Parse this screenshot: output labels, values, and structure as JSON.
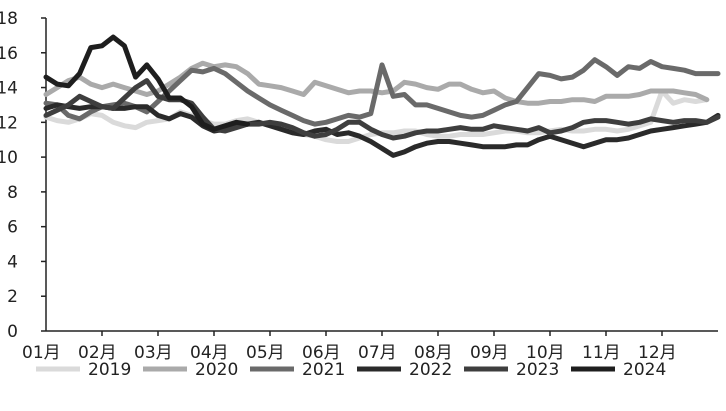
{
  "chart_data": {
    "type": "line",
    "title": "",
    "xlabel": "",
    "ylabel": "",
    "ylim": [
      0,
      18
    ],
    "yticks": [
      "0",
      "2",
      "4",
      "6",
      "8",
      "10",
      "12",
      "14",
      "16",
      "18"
    ],
    "categories": [
      "01月",
      "02月",
      "03月",
      "04月",
      "05月",
      "06月",
      "07月",
      "08月",
      "09月",
      "10月",
      "11月",
      "12月"
    ],
    "x_domain": [
      0,
      12
    ],
    "grid": false,
    "legend_position": "bottom",
    "series": [
      {
        "name": "2019",
        "color": "#dadada",
        "x": [
          0.0,
          0.2,
          0.4,
          0.6,
          0.8,
          1.0,
          1.2,
          1.4,
          1.6,
          1.8,
          2.0,
          2.2,
          2.4,
          2.6,
          2.8,
          3.0,
          3.2,
          3.4,
          3.6,
          3.8,
          4.0,
          4.2,
          4.4,
          4.6,
          4.8,
          5.0,
          5.2,
          5.4,
          5.6,
          5.8,
          6.0,
          6.2,
          6.4,
          6.6,
          6.8,
          7.0,
          7.2,
          7.4,
          7.6,
          7.8,
          8.0,
          8.2,
          8.4,
          8.6,
          8.8,
          9.0,
          9.2,
          9.4,
          9.6,
          9.8,
          10.0,
          10.2,
          10.4,
          10.6,
          10.8,
          11.0,
          11.2,
          11.4,
          11.6,
          11.8
        ],
        "values": [
          12.3,
          12.1,
          12.0,
          12.2,
          12.5,
          12.4,
          12.0,
          11.8,
          11.7,
          12.0,
          12.1,
          12.2,
          12.6,
          12.4,
          12.1,
          11.9,
          11.9,
          12.1,
          12.2,
          12.0,
          11.8,
          11.6,
          11.4,
          11.3,
          11.2,
          11.0,
          10.9,
          10.9,
          11.1,
          11.3,
          11.4,
          11.4,
          11.5,
          11.5,
          11.3,
          11.2,
          11.2,
          11.3,
          11.3,
          11.3,
          11.4,
          11.5,
          11.5,
          11.4,
          11.4,
          11.5,
          11.6,
          11.5,
          11.5,
          11.6,
          11.6,
          11.5,
          11.6,
          11.8,
          12.0,
          13.8,
          13.1,
          13.3,
          13.2,
          13.3
        ]
      },
      {
        "name": "2020",
        "color": "#aaaaaa",
        "x": [
          0.0,
          0.2,
          0.4,
          0.6,
          0.8,
          1.0,
          1.2,
          1.4,
          1.6,
          1.8,
          2.0,
          2.2,
          2.4,
          2.6,
          2.8,
          3.0,
          3.2,
          3.4,
          3.6,
          3.8,
          4.0,
          4.2,
          4.4,
          4.6,
          4.8,
          5.0,
          5.2,
          5.4,
          5.6,
          5.8,
          6.0,
          6.2,
          6.4,
          6.6,
          6.8,
          7.0,
          7.2,
          7.4,
          7.6,
          7.8,
          8.0,
          8.2,
          8.4,
          8.6,
          8.8,
          9.0,
          9.2,
          9.4,
          9.6,
          9.8,
          10.0,
          10.2,
          10.4,
          10.6,
          10.8,
          11.0,
          11.2,
          11.4,
          11.6,
          11.8
        ],
        "values": [
          13.6,
          14.0,
          14.4,
          14.6,
          14.2,
          14.0,
          14.2,
          14.0,
          13.8,
          13.6,
          13.8,
          14.2,
          14.6,
          15.1,
          15.4,
          15.2,
          15.3,
          15.2,
          14.8,
          14.2,
          14.1,
          14.0,
          13.8,
          13.6,
          14.3,
          14.1,
          13.9,
          13.7,
          13.8,
          13.8,
          13.7,
          13.8,
          14.3,
          14.2,
          14.0,
          13.9,
          14.2,
          14.2,
          13.9,
          13.7,
          13.8,
          13.4,
          13.2,
          13.1,
          13.1,
          13.2,
          13.2,
          13.3,
          13.3,
          13.2,
          13.5,
          13.5,
          13.5,
          13.6,
          13.8,
          13.8,
          13.8,
          13.7,
          13.6,
          13.3
        ]
      },
      {
        "name": "2021",
        "color": "#6a6a6a",
        "x": [
          0.0,
          0.2,
          0.4,
          0.6,
          0.8,
          1.0,
          1.2,
          1.4,
          1.6,
          1.8,
          2.0,
          2.2,
          2.4,
          2.6,
          2.8,
          3.0,
          3.2,
          3.4,
          3.6,
          3.8,
          4.0,
          4.2,
          4.4,
          4.6,
          4.8,
          5.0,
          5.2,
          5.4,
          5.6,
          5.8,
          6.0,
          6.2,
          6.4,
          6.6,
          6.8,
          7.0,
          7.2,
          7.4,
          7.6,
          7.8,
          8.0,
          8.2,
          8.4,
          8.6,
          8.8,
          9.0,
          9.2,
          9.4,
          9.6,
          9.8,
          10.0,
          10.2,
          10.4,
          10.6,
          10.8,
          11.0,
          11.2,
          11.4,
          11.6,
          11.8,
          12.0
        ],
        "values": [
          13.1,
          13.0,
          12.4,
          12.2,
          12.6,
          12.9,
          13.0,
          13.1,
          12.9,
          12.6,
          13.2,
          13.8,
          14.4,
          15.0,
          14.9,
          15.1,
          14.8,
          14.3,
          13.8,
          13.4,
          13.0,
          12.7,
          12.4,
          12.1,
          11.9,
          12.0,
          12.2,
          12.4,
          12.3,
          12.5,
          15.3,
          13.5,
          13.6,
          13.0,
          13.0,
          12.8,
          12.6,
          12.4,
          12.3,
          12.4,
          12.7,
          13.0,
          13.2,
          14.0,
          14.8,
          14.7,
          14.5,
          14.6,
          15.0,
          15.6,
          15.2,
          14.7,
          15.2,
          15.1,
          15.5,
          15.2,
          15.1,
          15.0,
          14.8,
          14.8,
          14.8
        ]
      },
      {
        "name": "2022",
        "color": "#2a2a2a",
        "x": [
          0.0,
          0.2,
          0.4,
          0.6,
          0.8,
          1.0,
          1.2,
          1.4,
          1.6,
          1.8,
          2.0,
          2.2,
          2.4,
          2.6,
          2.8,
          3.0,
          3.2,
          3.4,
          3.6,
          3.8,
          4.0,
          4.2,
          4.4,
          4.6,
          4.8,
          5.0,
          5.2,
          5.4,
          5.6,
          5.8,
          6.0,
          6.2,
          6.4,
          6.6,
          6.8,
          7.0,
          7.2,
          7.4,
          7.6,
          7.8,
          8.0,
          8.2,
          8.4,
          8.6,
          8.8,
          9.0,
          9.2,
          9.4,
          9.6,
          9.8,
          10.0,
          10.2,
          10.4,
          10.6,
          10.8,
          11.0,
          11.2,
          11.4,
          11.6,
          11.8,
          12.0
        ],
        "values": [
          12.8,
          13.0,
          12.9,
          12.8,
          12.9,
          12.9,
          12.8,
          12.8,
          12.9,
          12.9,
          12.4,
          12.2,
          12.5,
          12.3,
          11.8,
          11.5,
          11.6,
          11.8,
          11.9,
          12.0,
          11.8,
          11.6,
          11.4,
          11.3,
          11.5,
          11.6,
          11.3,
          11.4,
          11.2,
          10.9,
          10.5,
          10.1,
          10.3,
          10.6,
          10.8,
          10.9,
          10.9,
          10.8,
          10.7,
          10.6,
          10.6,
          10.6,
          10.7,
          10.7,
          11.0,
          11.2,
          11.0,
          10.8,
          10.6,
          10.8,
          11.0,
          11.0,
          11.1,
          11.3,
          11.5,
          11.6,
          11.7,
          11.8,
          11.9,
          12.0,
          12.4
        ]
      },
      {
        "name": "2023",
        "color": "#3e3e3e",
        "x": [
          0.0,
          0.2,
          0.4,
          0.6,
          0.8,
          1.0,
          1.2,
          1.4,
          1.6,
          1.8,
          2.0,
          2.2,
          2.4,
          2.6,
          2.8,
          3.0,
          3.2,
          3.4,
          3.6,
          3.8,
          4.0,
          4.2,
          4.4,
          4.6,
          4.8,
          5.0,
          5.2,
          5.4,
          5.6,
          5.8,
          6.0,
          6.2,
          6.4,
          6.6,
          6.8,
          7.0,
          7.2,
          7.4,
          7.6,
          7.8,
          8.0,
          8.2,
          8.4,
          8.6,
          8.8,
          9.0,
          9.2,
          9.4,
          9.6,
          9.8,
          10.0,
          10.2,
          10.4,
          10.6,
          10.8,
          11.0,
          11.2,
          11.4,
          11.6,
          11.8,
          12.0
        ],
        "values": [
          12.4,
          12.7,
          13.0,
          13.5,
          13.2,
          12.9,
          12.8,
          13.4,
          14.0,
          14.4,
          13.5,
          13.3,
          13.3,
          13.1,
          12.3,
          11.6,
          11.5,
          11.7,
          11.9,
          11.9,
          12.0,
          11.9,
          11.7,
          11.4,
          11.2,
          11.3,
          11.6,
          12.0,
          12.0,
          11.6,
          11.3,
          11.1,
          11.2,
          11.4,
          11.5,
          11.5,
          11.6,
          11.7,
          11.6,
          11.6,
          11.8,
          11.7,
          11.6,
          11.5,
          11.7,
          11.4,
          11.5,
          11.7,
          12.0,
          12.1,
          12.1,
          12.0,
          11.9,
          12.0,
          12.2,
          12.1,
          12.0,
          12.1,
          12.1,
          12.0,
          12.3
        ]
      },
      {
        "name": "2024",
        "color": "#1e1e1e",
        "x": [
          0.0,
          0.2,
          0.4,
          0.6,
          0.8,
          1.0,
          1.2,
          1.4,
          1.6,
          1.8,
          2.0,
          2.2,
          2.4,
          2.6,
          2.8,
          3.0,
          3.2,
          3.4,
          3.6
        ],
        "values": [
          14.6,
          14.2,
          14.1,
          14.8,
          16.3,
          16.4,
          16.9,
          16.4,
          14.6,
          15.3,
          14.5,
          13.4,
          13.4,
          12.9,
          11.9,
          11.6,
          11.8,
          12.0,
          11.9
        ]
      }
    ]
  }
}
